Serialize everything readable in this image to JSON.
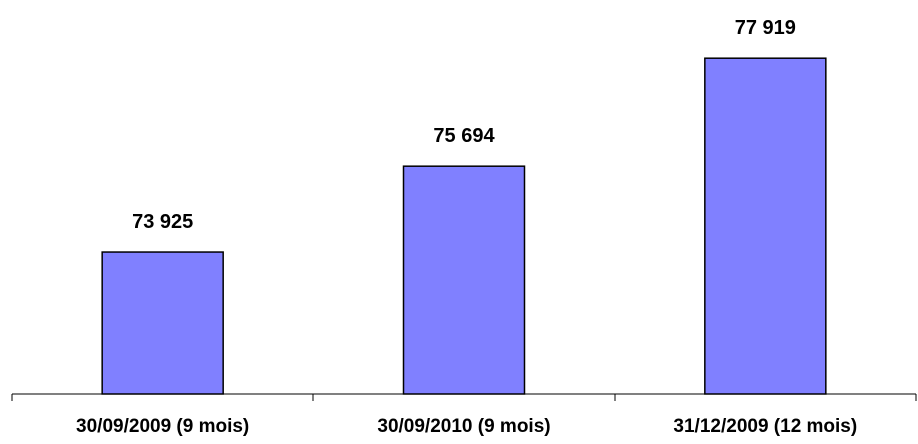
{
  "chart_data": {
    "type": "bar",
    "title": "",
    "xlabel": "",
    "ylabel": "",
    "categories": [
      "30/09/2009 (9 mois)",
      "30/09/2010 (9 mois)",
      "31/12/2009 (12 mois)"
    ],
    "values": [
      73925,
      75694,
      77919
    ],
    "value_labels": [
      "73 925",
      "75 694",
      "77 919"
    ],
    "ylim": [
      71000,
      78500
    ],
    "grid": false,
    "legend": "none",
    "bar_color": "#8080ff",
    "bar_border_color": "#000000"
  }
}
